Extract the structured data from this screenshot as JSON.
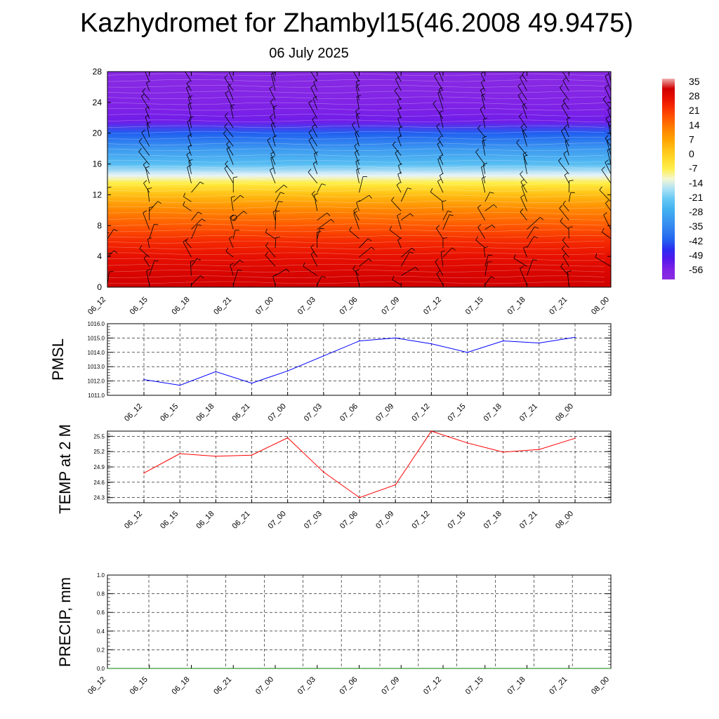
{
  "title": "Kazhydromet for Zhambyl15(46.2008 49.9475)",
  "subtitle": "06 July 2025",
  "chart_data": [
    {
      "type": "heatmap",
      "description_of_panel": "vertical cross-section: temperature shading with wind barbs",
      "ylim": [
        0,
        28
      ],
      "y_ticks": [
        0,
        4,
        8,
        12,
        16,
        20,
        24,
        28
      ],
      "x_ticks": [
        "06_12",
        "06_15",
        "06_18",
        "06_21",
        "07_00",
        "07_03",
        "07_06",
        "07_09",
        "07_12",
        "07_15",
        "07_18",
        "07_21",
        "08_00"
      ],
      "colorbar": {
        "labels": [
          "35",
          "28",
          "21",
          "14",
          "7",
          "0",
          "-7",
          "-14",
          "-21",
          "-28",
          "-35",
          "-42",
          "-49",
          "-56"
        ],
        "min": -63,
        "max": 38
      },
      "temperature_by_height": {
        "height": [
          0,
          2,
          4,
          6,
          8,
          10,
          12,
          13.5,
          14.5,
          16,
          18,
          20,
          21.5,
          23,
          25,
          28
        ],
        "value": [
          33,
          31,
          28,
          24,
          18,
          12,
          3,
          -7,
          -14,
          -25,
          -33,
          -44,
          -55,
          -57,
          -60,
          -62
        ]
      }
    },
    {
      "type": "line",
      "ylabel": "PMSL",
      "ylim": [
        1011.0,
        1016.0
      ],
      "y_ticks": [
        "1011.0",
        "1012.0",
        "1013.0",
        "1014.0",
        "1015.0",
        "1016.0"
      ],
      "categories": [
        "06_12",
        "06_15",
        "06_18",
        "06_21",
        "07_00",
        "07_03",
        "07_06",
        "07_09",
        "07_12",
        "07_15",
        "07_18",
        "07_21",
        "08_00"
      ],
      "series": [
        {
          "color": "#0000ff",
          "values": [
            1012.1,
            1011.7,
            1012.65,
            1011.85,
            1012.7,
            1013.75,
            1014.8,
            1015.0,
            1014.6,
            1014.0,
            1014.8,
            1014.65,
            1015.05
          ]
        }
      ]
    },
    {
      "type": "line",
      "ylabel": "TEMP at 2 M",
      "ylim": [
        24.2,
        25.6
      ],
      "y_ticks": [
        "24.3",
        "24.6",
        "24.9",
        "25.2",
        "25.5"
      ],
      "categories": [
        "06_12",
        "06_15",
        "06_18",
        "06_21",
        "07_00",
        "07_03",
        "07_06",
        "07_09",
        "07_12",
        "07_15",
        "07_18",
        "07_21",
        "08_00"
      ],
      "series": [
        {
          "color": "#ff0000",
          "values": [
            24.78,
            25.16,
            25.11,
            25.13,
            25.47,
            24.8,
            24.3,
            24.55,
            25.6,
            25.37,
            25.19,
            25.24,
            25.46
          ]
        }
      ]
    },
    {
      "type": "line",
      "ylabel": "PRECIP, mm",
      "ylim": [
        0.0,
        1.0
      ],
      "y_ticks": [
        "0.0",
        "0.2",
        "0.4",
        "0.6",
        "0.8",
        "1.0"
      ],
      "categories": [
        "06_12",
        "06_15",
        "06_18",
        "06_21",
        "07_00",
        "07_03",
        "07_06",
        "07_09",
        "07_12",
        "07_15",
        "07_18",
        "07_21",
        "08_00"
      ],
      "series": [
        {
          "color": "#008000",
          "values": [
            0,
            0,
            0,
            0,
            0,
            0,
            0,
            0,
            0,
            0,
            0,
            0,
            0
          ]
        }
      ]
    }
  ]
}
